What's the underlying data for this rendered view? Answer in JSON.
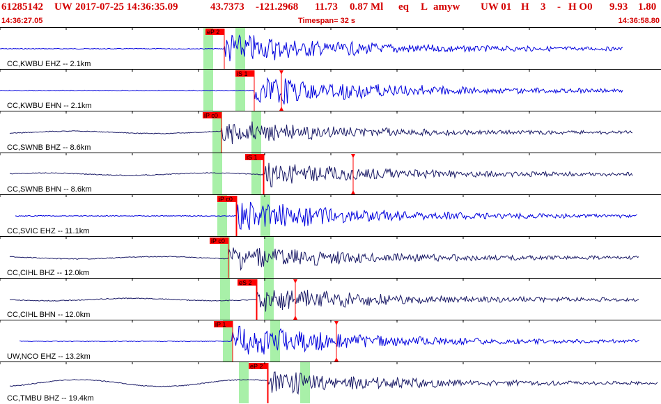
{
  "header": {
    "event_id": "61285142",
    "network": "UW",
    "datetime": "2017-07-25 14:36:35.09",
    "lat": "43.7373",
    "lon": "-121.2968",
    "depth": "11.73",
    "magnitude": "0.87 Ml",
    "etype": "eq",
    "flag1": "L",
    "author": "amyw",
    "source": "UW 01",
    "quality": "H",
    "count": "3",
    "dash": "-",
    "qual2": "H O0",
    "val1": "9.93",
    "val2": "1.80"
  },
  "subheader": {
    "start_time": "14:36:27.05",
    "timespan": "Timespan=  32 s",
    "end_time": "14:36:58.80"
  },
  "colors": {
    "header_text": "#d40000",
    "trace_blue": "#0000dd",
    "trace_navy": "#1a1a66",
    "pick_red": "#ff0000",
    "window_green": "#a8f0a8"
  },
  "panels": [
    {
      "label": "CC,KWBU EHZ -- 2.1km",
      "trace_color": "blue",
      "picks": [
        {
          "label": "eP 2"
        }
      ],
      "amp_arrow": false
    },
    {
      "label": "CC,KWBU EHN -- 2.1km",
      "trace_color": "blue",
      "picks": [
        {
          "label": "iS 1"
        }
      ],
      "amp_arrow": true
    },
    {
      "label": "CC,SWNB BHZ -- 8.6km",
      "trace_color": "navy",
      "picks": [
        {
          "label": "iP c0"
        }
      ],
      "amp_arrow": false
    },
    {
      "label": "CC,SWNB BHN -- 8.6km",
      "trace_color": "navy",
      "picks": [
        {
          "label": "iS 1"
        }
      ],
      "amp_arrow": true
    },
    {
      "label": "CC,SVIC EHZ -- 11.1km",
      "trace_color": "blue",
      "picks": [
        {
          "label": "iP c0"
        }
      ],
      "amp_arrow": false
    },
    {
      "label": "CC,CIHL BHZ -- 12.0km",
      "trace_color": "navy",
      "picks": [
        {
          "label": "iP c0"
        }
      ],
      "amp_arrow": false
    },
    {
      "label": "CC,CIHL BHN -- 12.0km",
      "trace_color": "navy",
      "picks": [
        {
          "label": "eS 2"
        }
      ],
      "amp_arrow": true
    },
    {
      "label": "UW,NCO EHZ -- 13.2km",
      "trace_color": "blue",
      "picks": [
        {
          "label": "iP 1"
        }
      ],
      "amp_arrow": true
    },
    {
      "label": "CC,TMBU BHZ -- 19.4km",
      "trace_color": "navy",
      "picks": [
        {
          "label": "eP 2"
        }
      ],
      "amp_arrow": false
    }
  ]
}
